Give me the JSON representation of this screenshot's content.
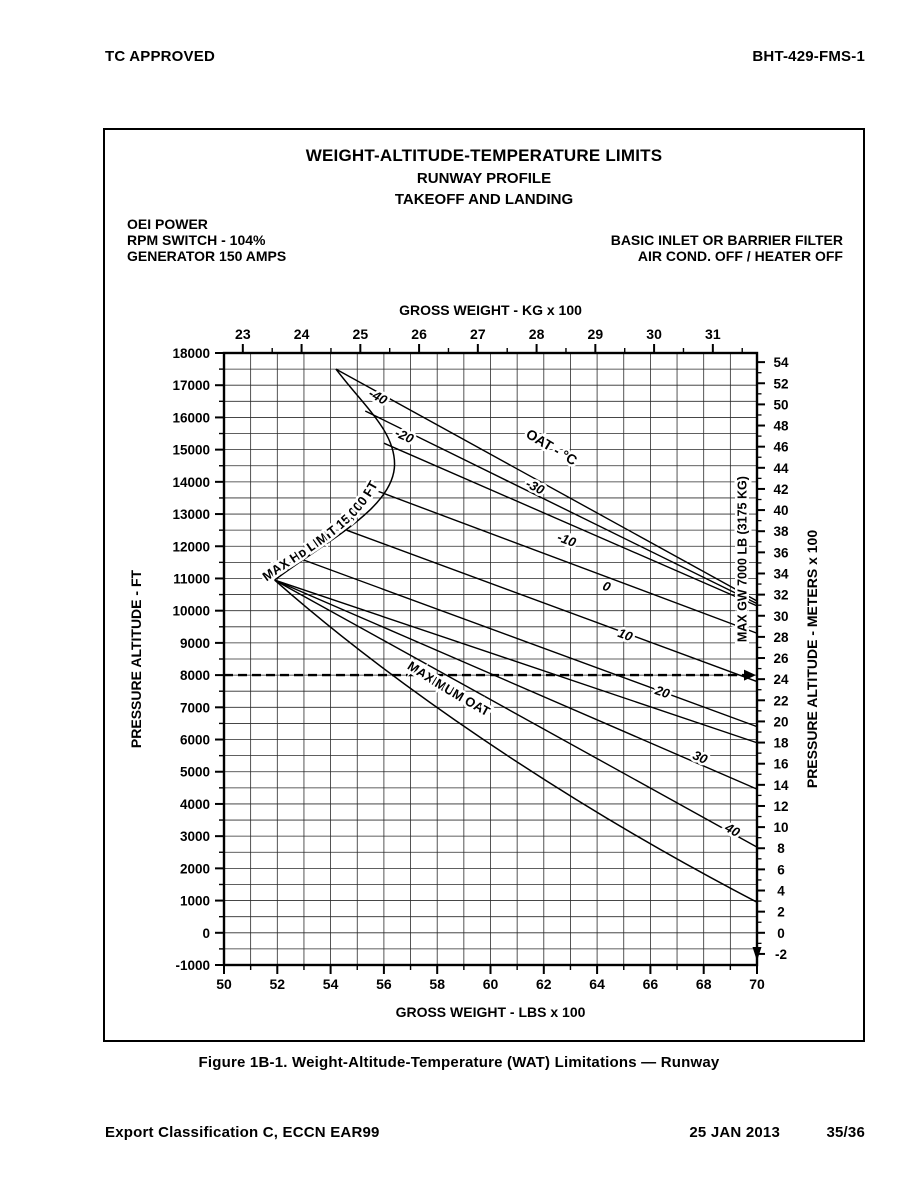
{
  "page": {
    "header_left": "TC APPROVED",
    "header_right": "BHT-429-FMS-1",
    "caption": "Figure 1B-1.   Weight-Altitude-Temperature (WAT) Limitations — Runway",
    "footer_left": "Export Classification C, ECCN EAR99",
    "footer_date": "25 JAN 2013",
    "footer_page": "35/36"
  },
  "figure": {
    "title_lines": [
      "WEIGHT-ALTITUDE-TEMPERATURE LIMITS",
      "RUNWAY PROFILE",
      "TAKEOFF AND LANDING"
    ],
    "conditions_left": [
      "OEI POWER",
      "RPM SWITCH - 104%",
      "GENERATOR 150 AMPS"
    ],
    "conditions_right": [
      "BASIC INLET OR BARRIER FILTER",
      "AIR COND. OFF  /  HEATER OFF"
    ]
  },
  "chart_data": {
    "type": "line",
    "title": "",
    "x_axis_bottom": {
      "label": "GROSS WEIGHT  -  LBS x 100",
      "min": 50,
      "max": 70,
      "label_step": 2,
      "minor_step": 1
    },
    "x_axis_top": {
      "label": "GROSS WEIGHT  -  KG x 100",
      "ticks": [
        23,
        24,
        25,
        26,
        27,
        28,
        29,
        30,
        31
      ],
      "minor_step": 0.5,
      "lbs_per_unit": 2.20462
    },
    "y_axis_left": {
      "label": "PRESSURE ALTITUDE  -  FT",
      "min": -1000,
      "max": 18000,
      "label_step": 1000,
      "minor_step": 500
    },
    "y_axis_right": {
      "label": "PRESSURE ALTITUDE  -  METERS x 100",
      "tick_min": -2,
      "tick_max": 54,
      "tick_step": 2,
      "ft_per_unit": 328.084
    },
    "grid": {
      "x_step": 1,
      "y_step": 500,
      "on": true
    },
    "legend_position": "none",
    "oat_family_label": {
      "text": "OAT - °C",
      "at": [
        62.2,
        14950
      ],
      "angle": 31
    },
    "max_gw_label": {
      "text": "MAX GW 7000 LB (3175 KG)",
      "x": 69.6,
      "alt_center": 11600
    },
    "hd_limit_boundary": {
      "label": "MAX Hᴅ LIMIT 15,000 FT",
      "top": [
        54.2,
        17500
      ],
      "knee": [
        56.4,
        14550
      ],
      "tip": [
        51.9,
        10950
      ]
    },
    "max_oat_boundary": {
      "label": "MAXIMUM OAT",
      "from": [
        51.9,
        10950
      ],
      "mid": [
        60.0,
        6600
      ],
      "to": [
        70,
        950
      ]
    },
    "dashed_reference": {
      "altitude_ft": 8000,
      "arrow": "right"
    },
    "series": [
      {
        "name": "-40",
        "points": [
          [
            54.2,
            17500
          ],
          [
            70,
            10300
          ]
        ],
        "label_at": [
          55.7,
          16650
        ]
      },
      {
        "name": "-30",
        "points": [
          [
            55.3,
            16200
          ],
          [
            70,
            10220
          ]
        ],
        "label_at": [
          61.6,
          13850
        ]
      },
      {
        "name": "-20",
        "points": [
          [
            56.0,
            15200
          ],
          [
            70,
            10150
          ]
        ],
        "label_at": [
          56.7,
          15430
        ]
      },
      {
        "name": "-10",
        "points": [
          [
            55.8,
            13700
          ],
          [
            70,
            9300
          ]
        ],
        "label_at": [
          62.8,
          12200
        ]
      },
      {
        "name": "0",
        "points": [
          [
            54.6,
            12500
          ],
          [
            70,
            7800
          ]
        ],
        "label_at": [
          64.3,
          10750
        ]
      },
      {
        "name": "10",
        "points": [
          [
            52.9,
            11600
          ],
          [
            70,
            6400
          ]
        ],
        "label_at": [
          65.0,
          9250
        ]
      },
      {
        "name": "20",
        "points": [
          [
            51.9,
            10950
          ],
          [
            70,
            5900
          ]
        ],
        "label_at": [
          66.4,
          7470
        ]
      },
      {
        "name": "30",
        "points": [
          [
            51.9,
            10950
          ],
          [
            70,
            4460
          ]
        ],
        "label_at": [
          67.8,
          5450
        ]
      },
      {
        "name": "40",
        "points": [
          [
            51.9,
            10950
          ],
          [
            70,
            2660
          ]
        ],
        "label_at": [
          69.0,
          3200
        ]
      }
    ]
  }
}
